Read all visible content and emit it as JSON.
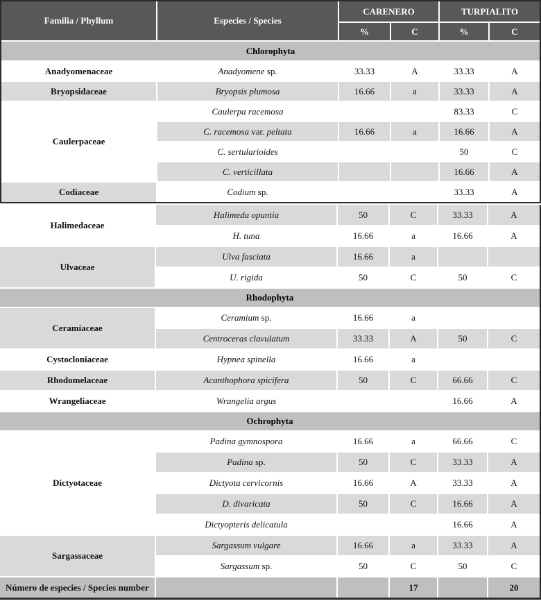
{
  "colors": {
    "header_bg": "#585858",
    "header_text": "#ffffff",
    "band_bg": "#bfbfbf",
    "row_gray": "#d9d9d9",
    "row_white": "#ffffff",
    "footer_bg": "#bfbfbf",
    "frame": "#2a2a2a"
  },
  "header": {
    "family_label": "Familia / Phyllum",
    "species_label": "Especies / Species",
    "sites": [
      "CARENERO",
      "TURPIALITO"
    ],
    "subcols": [
      "%",
      "C"
    ]
  },
  "footer": {
    "label": "Número de especies / Species number",
    "carenero_count": "17",
    "turpialito_count": "20"
  },
  "parts": [
    {
      "blocks": [
        {
          "type": "band",
          "title": "Chlorophyta"
        },
        {
          "type": "rows",
          "rows": [
            {
              "family": {
                "name": "Anadyomenaceae",
                "span": 1,
                "shade": "white"
              },
              "shade": "white",
              "species": [
                {
                  "t": "Anadyomene",
                  "i": true
                },
                {
                  "t": " sp.",
                  "i": false
                }
              ],
              "values": [
                "33.33",
                "A",
                "33.33",
                "A"
              ]
            },
            {
              "family": {
                "name": "Bryopsidaceae",
                "span": 1,
                "shade": "gray"
              },
              "shade": "gray",
              "species": [
                {
                  "t": "Bryopsis plumosa",
                  "i": true
                }
              ],
              "values": [
                "16.66",
                "a",
                "33.33",
                "A"
              ]
            },
            {
              "family": {
                "name": "Caulerpaceae",
                "span": 4,
                "shade": "white"
              },
              "shade": "white",
              "species": [
                {
                  "t": "Caulerpa racemosa",
                  "i": true
                }
              ],
              "values": [
                "",
                "",
                "83.33",
                "C"
              ]
            },
            {
              "shade": "gray",
              "species": [
                {
                  "t": "C. racemosa",
                  "i": true
                },
                {
                  "t": " var. ",
                  "i": false
                },
                {
                  "t": "peltata",
                  "i": true
                }
              ],
              "values": [
                "16.66",
                "a",
                "16.66",
                "A"
              ]
            },
            {
              "shade": "white",
              "species": [
                {
                  "t": "C. sertularioides",
                  "i": true
                }
              ],
              "values": [
                "",
                "",
                "50",
                "C"
              ]
            },
            {
              "shade": "gray",
              "species": [
                {
                  "t": "C. verticillata",
                  "i": true
                }
              ],
              "values": [
                "",
                "",
                "16.66",
                "A"
              ]
            },
            {
              "family": {
                "name": "Codiaceae",
                "span": 1,
                "shade": "gray"
              },
              "shade": "white",
              "species": [
                {
                  "t": "Codium",
                  "i": true
                },
                {
                  "t": " sp.",
                  "i": false
                }
              ],
              "values": [
                "",
                "",
                "33.33",
                "A"
              ]
            }
          ]
        }
      ]
    },
    {
      "blocks": [
        {
          "type": "rows",
          "rows": [
            {
              "family": {
                "name": "Halimedaceae",
                "span": 2,
                "shade": "white"
              },
              "shade": "gray",
              "species": [
                {
                  "t": "Halimeda opuntia",
                  "i": true
                }
              ],
              "values": [
                "50",
                "C",
                "33.33",
                "A"
              ]
            },
            {
              "shade": "white",
              "species": [
                {
                  "t": "H. tuna",
                  "i": true
                }
              ],
              "values": [
                "16.66",
                "a",
                "16.66",
                "A"
              ]
            },
            {
              "family": {
                "name": "Ulvaceae",
                "span": 2,
                "shade": "gray"
              },
              "shade": "gray",
              "species": [
                {
                  "t": "Ulva fasciata",
                  "i": true
                }
              ],
              "values": [
                "16.66",
                "a",
                "",
                ""
              ]
            },
            {
              "shade": "white",
              "species": [
                {
                  "t": "U. rigida",
                  "i": true
                }
              ],
              "values": [
                "50",
                "C",
                "50",
                "C"
              ]
            }
          ]
        },
        {
          "type": "band",
          "title": "Rhodophyta"
        },
        {
          "type": "rows",
          "rows": [
            {
              "family": {
                "name": "Ceramiaceae",
                "span": 2,
                "shade": "gray"
              },
              "shade": "white",
              "species": [
                {
                  "t": "Ceramium",
                  "i": true
                },
                {
                  "t": " sp.",
                  "i": false
                }
              ],
              "values": [
                "16.66",
                "a",
                "",
                ""
              ]
            },
            {
              "shade": "gray",
              "species": [
                {
                  "t": "Centroceras clavulatum",
                  "i": true
                }
              ],
              "values": [
                "33.33",
                "A",
                "50",
                "C"
              ]
            },
            {
              "family": {
                "name": "Cystocloniaceae",
                "span": 1,
                "shade": "white"
              },
              "shade": "white",
              "species": [
                {
                  "t": "Hypnea spinella",
                  "i": true
                }
              ],
              "values": [
                "16.66",
                "a",
                "",
                ""
              ]
            },
            {
              "family": {
                "name": "Rhodomelaceae",
                "span": 1,
                "shade": "gray"
              },
              "shade": "gray",
              "species": [
                {
                  "t": "Acanthophora spicifera",
                  "i": true
                }
              ],
              "values": [
                "50",
                "C",
                "66.66",
                "C"
              ]
            },
            {
              "family": {
                "name": "Wrangeliaceae",
                "span": 1,
                "shade": "white"
              },
              "shade": "white",
              "species": [
                {
                  "t": "Wrangelia argus",
                  "i": true
                }
              ],
              "values": [
                "",
                "",
                "16.66",
                "A"
              ]
            }
          ]
        },
        {
          "type": "band",
          "title": "Ochrophyta"
        },
        {
          "type": "rows",
          "rows": [
            {
              "family": {
                "name": "Dictyotaceae",
                "span": 5,
                "shade": "white"
              },
              "shade": "white",
              "species": [
                {
                  "t": "Padina gymnospora",
                  "i": true
                }
              ],
              "values": [
                "16.66",
                "a",
                "66.66",
                "C"
              ]
            },
            {
              "shade": "gray",
              "species": [
                {
                  "t": "Padina",
                  "i": true
                },
                {
                  "t": " sp.",
                  "i": false
                }
              ],
              "values": [
                "50",
                "C",
                "33.33",
                "A"
              ]
            },
            {
              "shade": "white",
              "species": [
                {
                  "t": "Dictyota cervicornis",
                  "i": true
                }
              ],
              "values": [
                "16.66",
                "A",
                "33.33",
                "A"
              ]
            },
            {
              "shade": "gray",
              "species": [
                {
                  "t": "D. divaricata",
                  "i": true
                }
              ],
              "values": [
                "50",
                "C",
                "16.66",
                "A"
              ]
            },
            {
              "shade": "white",
              "species": [
                {
                  "t": "Dictyopteris delicatula",
                  "i": true
                }
              ],
              "values": [
                "",
                "",
                "16.66",
                "A"
              ]
            },
            {
              "family": {
                "name": "Sargassaceae",
                "span": 2,
                "shade": "gray"
              },
              "shade": "gray",
              "species": [
                {
                  "t": "Sargassum vulgare",
                  "i": true
                }
              ],
              "values": [
                "16.66",
                "a",
                "33.33",
                "A"
              ]
            },
            {
              "shade": "white",
              "species": [
                {
                  "t": "Sargassum",
                  "i": true
                },
                {
                  "t": " sp.",
                  "i": false
                }
              ],
              "values": [
                "50",
                "C",
                "50",
                "C"
              ]
            }
          ]
        },
        {
          "type": "footer"
        }
      ]
    }
  ]
}
